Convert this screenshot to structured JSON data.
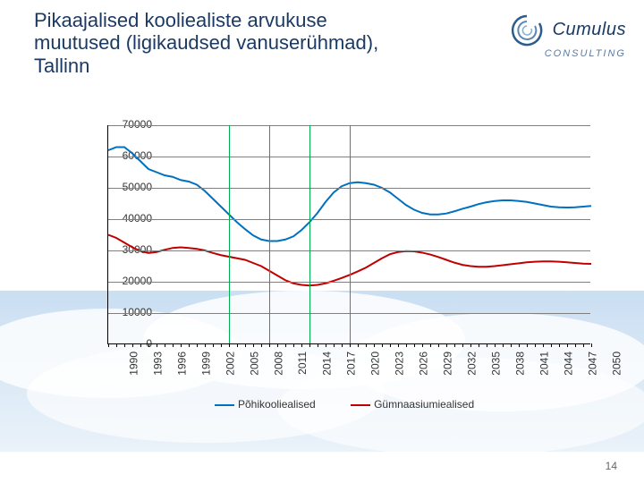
{
  "title": "Pikaajalised kooliealiste arvukuse muutused (ligikaudsed vanuserühmad), Tallinn",
  "logo": {
    "brand": "Cumulus",
    "sub": "CONSULTING"
  },
  "page_number": "14",
  "chart": {
    "type": "line",
    "x_start": 1990,
    "x_end": 2050,
    "x_step_labels": 3,
    "x_label_list": [
      "1990",
      "1993",
      "1996",
      "1999",
      "2002",
      "2005",
      "2008",
      "2011",
      "2014",
      "2017",
      "2020",
      "2023",
      "2026",
      "2029",
      "2032",
      "2035",
      "2038",
      "2041",
      "2044",
      "2047",
      "2050"
    ],
    "ylim": [
      0,
      70000
    ],
    "ytick_step": 10000,
    "y_label_list": [
      "0",
      "10000",
      "20000",
      "30000",
      "40000",
      "50000",
      "60000",
      "70000"
    ],
    "x_green_lines": [
      2005,
      2010,
      2015,
      2020
    ],
    "background_color": "#ffffff",
    "grid_color": "#808080",
    "x_green_color": "#00b050",
    "series": [
      {
        "name": "Põhikooliealised",
        "color": "#0070c0",
        "line_width": 2,
        "points": [
          [
            1990,
            62000
          ],
          [
            1991,
            63000
          ],
          [
            1992,
            63000
          ],
          [
            1993,
            61000
          ],
          [
            1994,
            58500
          ],
          [
            1995,
            56000
          ],
          [
            1996,
            55000
          ],
          [
            1997,
            54000
          ],
          [
            1998,
            53500
          ],
          [
            1999,
            52500
          ],
          [
            2000,
            52000
          ],
          [
            2001,
            51000
          ],
          [
            2002,
            49000
          ],
          [
            2003,
            46500
          ],
          [
            2004,
            44000
          ],
          [
            2005,
            41500
          ],
          [
            2006,
            39000
          ],
          [
            2007,
            36800
          ],
          [
            2008,
            34800
          ],
          [
            2009,
            33500
          ],
          [
            2010,
            33000
          ],
          [
            2011,
            33000
          ],
          [
            2012,
            33500
          ],
          [
            2013,
            34500
          ],
          [
            2014,
            36500
          ],
          [
            2015,
            39000
          ],
          [
            2016,
            42000
          ],
          [
            2017,
            45500
          ],
          [
            2018,
            48500
          ],
          [
            2019,
            50500
          ],
          [
            2020,
            51500
          ],
          [
            2021,
            51800
          ],
          [
            2022,
            51500
          ],
          [
            2023,
            51000
          ],
          [
            2024,
            50000
          ],
          [
            2025,
            48500
          ],
          [
            2026,
            46500
          ],
          [
            2027,
            44500
          ],
          [
            2028,
            43000
          ],
          [
            2029,
            42000
          ],
          [
            2030,
            41500
          ],
          [
            2031,
            41500
          ],
          [
            2032,
            41800
          ],
          [
            2033,
            42500
          ],
          [
            2034,
            43300
          ],
          [
            2035,
            44000
          ],
          [
            2036,
            44800
          ],
          [
            2037,
            45400
          ],
          [
            2038,
            45800
          ],
          [
            2039,
            46000
          ],
          [
            2040,
            46000
          ],
          [
            2041,
            45800
          ],
          [
            2042,
            45500
          ],
          [
            2043,
            45000
          ],
          [
            2044,
            44500
          ],
          [
            2045,
            44000
          ],
          [
            2046,
            43800
          ],
          [
            2047,
            43700
          ],
          [
            2048,
            43800
          ],
          [
            2049,
            44000
          ],
          [
            2050,
            44200
          ]
        ]
      },
      {
        "name": "Gümnaasiumiealised",
        "color": "#c00000",
        "line_width": 2,
        "points": [
          [
            1990,
            35000
          ],
          [
            1991,
            34000
          ],
          [
            1992,
            32500
          ],
          [
            1993,
            31000
          ],
          [
            1994,
            29800
          ],
          [
            1995,
            29200
          ],
          [
            1996,
            29500
          ],
          [
            1997,
            30200
          ],
          [
            1998,
            30800
          ],
          [
            1999,
            31000
          ],
          [
            2000,
            30800
          ],
          [
            2001,
            30500
          ],
          [
            2002,
            30000
          ],
          [
            2003,
            29200
          ],
          [
            2004,
            28500
          ],
          [
            2005,
            28000
          ],
          [
            2006,
            27500
          ],
          [
            2007,
            27000
          ],
          [
            2008,
            26000
          ],
          [
            2009,
            25000
          ],
          [
            2010,
            23500
          ],
          [
            2011,
            22000
          ],
          [
            2012,
            20500
          ],
          [
            2013,
            19500
          ],
          [
            2014,
            19000
          ],
          [
            2015,
            18800
          ],
          [
            2016,
            19000
          ],
          [
            2017,
            19500
          ],
          [
            2018,
            20300
          ],
          [
            2019,
            21200
          ],
          [
            2020,
            22200
          ],
          [
            2021,
            23300
          ],
          [
            2022,
            24500
          ],
          [
            2023,
            26000
          ],
          [
            2024,
            27500
          ],
          [
            2025,
            28800
          ],
          [
            2026,
            29500
          ],
          [
            2027,
            29800
          ],
          [
            2028,
            29700
          ],
          [
            2029,
            29300
          ],
          [
            2030,
            28700
          ],
          [
            2031,
            27900
          ],
          [
            2032,
            27000
          ],
          [
            2033,
            26100
          ],
          [
            2034,
            25400
          ],
          [
            2035,
            25000
          ],
          [
            2036,
            24800
          ],
          [
            2037,
            24800
          ],
          [
            2038,
            25000
          ],
          [
            2039,
            25300
          ],
          [
            2040,
            25600
          ],
          [
            2041,
            25900
          ],
          [
            2042,
            26200
          ],
          [
            2043,
            26400
          ],
          [
            2044,
            26500
          ],
          [
            2045,
            26500
          ],
          [
            2046,
            26400
          ],
          [
            2047,
            26200
          ],
          [
            2048,
            26000
          ],
          [
            2049,
            25800
          ],
          [
            2050,
            25700
          ]
        ]
      }
    ],
    "legend": {
      "items": [
        "Põhikooliealised",
        "Gümnaasiumiealised"
      ]
    }
  }
}
